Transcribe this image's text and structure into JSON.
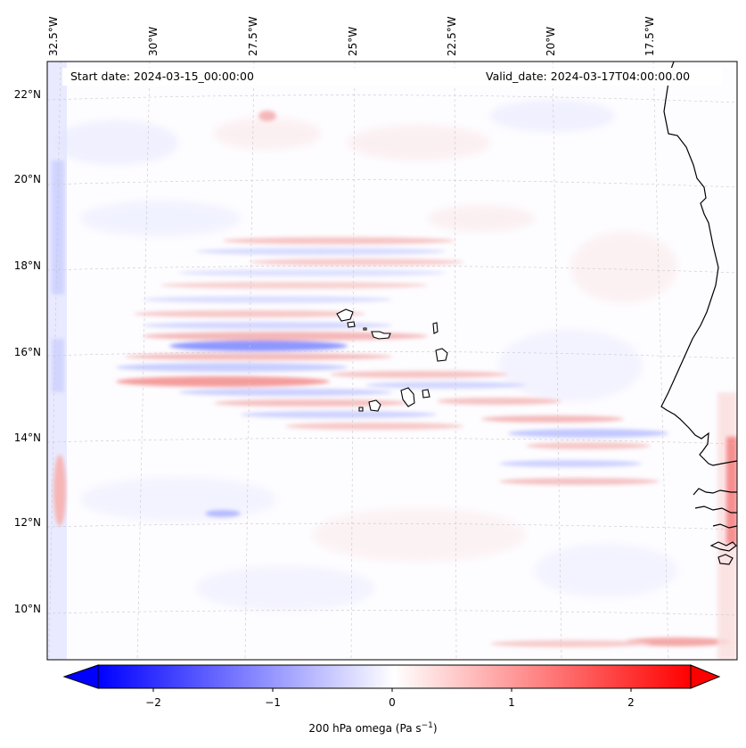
{
  "header": {
    "start_date": "Start date: 2024-03-15_00:00:00",
    "valid_date": "Valid_date: 2024-03-17T04:00:00.00"
  },
  "map": {
    "longitude_labels": [
      "32.5°W",
      "30°W",
      "27.5°W",
      "25°W",
      "22.5°W",
      "20°W",
      "17.5°W"
    ],
    "latitude_labels": [
      "22°N",
      "20°N",
      "18°N",
      "16°N",
      "14°N",
      "12°N",
      "10°N"
    ],
    "features": [
      "Cape Verde islands",
      "West African coastline",
      "Gridlines"
    ]
  },
  "colorbar": {
    "label_main": "200 hPa omega (Pa s",
    "label_exp": "−1",
    "label_close": ")",
    "ticks": [
      "−2",
      "−1",
      "0",
      "1",
      "2"
    ],
    "min": -2.6,
    "max": 2.6,
    "low_color": "#0000ff",
    "mid_color": "#ffffff",
    "high_color": "#ff0000"
  },
  "colors": {
    "blue": "#3a4cff",
    "red": "#ff3a3a",
    "coast": "#000000",
    "grid": "#c8c8c8"
  }
}
